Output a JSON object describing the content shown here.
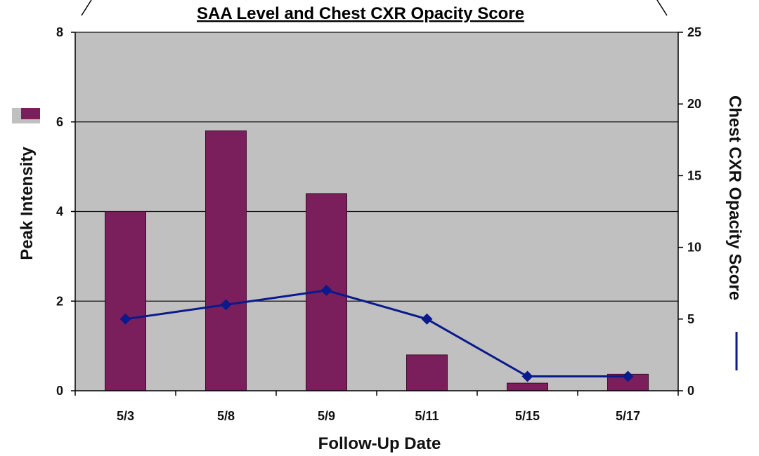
{
  "chart_data": {
    "type": "bar+line",
    "title": "SAA Level and Chest CXR Opacity Score",
    "xlabel": "Follow-Up Date",
    "ylabel_left": "Peak Intensity",
    "ylabel_right": "Chest CXR Opacity Score",
    "categories": [
      "5/3",
      "5/8",
      "5/9",
      "5/11",
      "5/15",
      "5/17"
    ],
    "ylim_left": [
      0,
      8
    ],
    "yticks_left": [
      0,
      2,
      4,
      6,
      8
    ],
    "ylim_right": [
      0,
      25
    ],
    "yticks_right": [
      0,
      5,
      10,
      15,
      20,
      25
    ],
    "grid": true,
    "series": [
      {
        "axis": "left",
        "kind": "bar",
        "color": "#7b1f5c",
        "values": [
          4.0,
          5.8,
          4.4,
          0.8,
          0.17,
          0.37
        ]
      },
      {
        "axis": "right",
        "kind": "line",
        "marker": "diamond",
        "color": "#0a1a8c",
        "values": [
          5.0,
          6.0,
          7.0,
          5.0,
          1.0,
          1.0
        ]
      }
    ]
  }
}
